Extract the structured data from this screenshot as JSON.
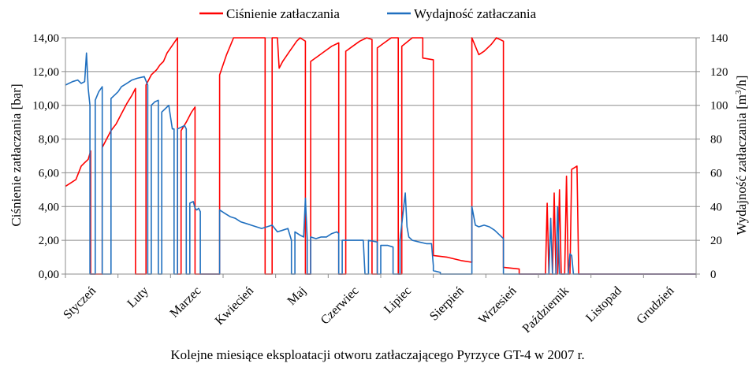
{
  "chart_data": {
    "type": "line",
    "xlabel": "Kolejne miesiące eksploatacji otworu zatłaczającego Pyrzyce GT-4 w 2007 r.",
    "ylabel_left": "Ciśnienie zatłaczania [bar]",
    "ylabel_right_parts": [
      "Wydajność zatłaczania [m",
      "3",
      "/h]"
    ],
    "ylim_left": [
      0,
      14
    ],
    "ylim_right": [
      0,
      140
    ],
    "yticks_left": [
      "0,00",
      "2,00",
      "4,00",
      "6,00",
      "8,00",
      "10,00",
      "12,00",
      "14,00"
    ],
    "yticks_right": [
      "0",
      "20",
      "40",
      "60",
      "80",
      "100",
      "120",
      "140"
    ],
    "months": [
      "Styczeń",
      "Luty",
      "Marzec",
      "Kwiecień",
      "Maj",
      "Czerwiec",
      "Lipiec",
      "Sierpień",
      "Wrzesień",
      "Październik",
      "Listopad",
      "Grudzień"
    ],
    "grid": true,
    "legend_position": "top-center",
    "series": [
      {
        "name": "Ciśnienie zatłaczania",
        "axis": "left",
        "color": "#ff0000",
        "points": [
          [
            0,
            5.2
          ],
          [
            0.15,
            5.4
          ],
          [
            0.3,
            5.6
          ],
          [
            0.45,
            6.4
          ],
          [
            0.55,
            6.6
          ],
          [
            0.65,
            6.8
          ],
          [
            0.72,
            7.3
          ],
          [
            0.72,
            0
          ],
          [
            1.05,
            0
          ],
          [
            1.05,
            7.5
          ],
          [
            1.15,
            7.9
          ],
          [
            1.3,
            8.5
          ],
          [
            1.45,
            8.9
          ],
          [
            1.6,
            9.5
          ],
          [
            1.75,
            10.1
          ],
          [
            1.9,
            10.6
          ],
          [
            2.0,
            11.0
          ],
          [
            2.0,
            0
          ],
          [
            2.3,
            0
          ],
          [
            2.3,
            11.2
          ],
          [
            2.45,
            11.8
          ],
          [
            2.6,
            12.1
          ],
          [
            2.7,
            12.4
          ],
          [
            2.8,
            12.6
          ],
          [
            2.9,
            13.1
          ],
          [
            3.0,
            13.4
          ],
          [
            3.1,
            13.7
          ],
          [
            3.2,
            14.0
          ],
          [
            3.2,
            0
          ],
          [
            3.3,
            0
          ],
          [
            3.3,
            8.5
          ],
          [
            3.45,
            9.0
          ],
          [
            3.6,
            9.6
          ],
          [
            3.7,
            9.9
          ],
          [
            3.7,
            0
          ],
          [
            4.4,
            0
          ],
          [
            4.4,
            11.8
          ],
          [
            4.5,
            12.4
          ],
          [
            4.6,
            13.0
          ],
          [
            4.7,
            13.5
          ],
          [
            4.8,
            14.0
          ],
          [
            5.7,
            14.0
          ],
          [
            5.7,
            0
          ],
          [
            5.9,
            0
          ],
          [
            5.9,
            14.0
          ],
          [
            6.05,
            14.0
          ],
          [
            6.1,
            12.2
          ],
          [
            6.2,
            12.6
          ],
          [
            6.3,
            12.9
          ],
          [
            6.4,
            13.2
          ],
          [
            6.5,
            13.5
          ],
          [
            6.6,
            13.8
          ],
          [
            6.7,
            14.0
          ],
          [
            6.85,
            13.8
          ],
          [
            6.85,
            0
          ],
          [
            7.0,
            0
          ],
          [
            7.0,
            12.6
          ],
          [
            7.2,
            12.9
          ],
          [
            7.4,
            13.2
          ],
          [
            7.6,
            13.5
          ],
          [
            7.8,
            13.7
          ],
          [
            7.8,
            0
          ],
          [
            8.0,
            0
          ],
          [
            8.0,
            13.2
          ],
          [
            8.2,
            13.5
          ],
          [
            8.4,
            13.8
          ],
          [
            8.6,
            14.0
          ],
          [
            8.75,
            13.9
          ],
          [
            8.75,
            0
          ],
          [
            8.9,
            0
          ],
          [
            8.9,
            13.4
          ],
          [
            9.1,
            13.7
          ],
          [
            9.3,
            14.0
          ],
          [
            9.5,
            14.0
          ],
          [
            9.5,
            0
          ],
          [
            9.6,
            0
          ],
          [
            9.6,
            13.5
          ],
          [
            9.9,
            14.0
          ],
          [
            10.2,
            14.0
          ],
          [
            10.2,
            12.8
          ],
          [
            10.5,
            12.7
          ],
          [
            10.5,
            1.1
          ],
          [
            10.9,
            1.0
          ],
          [
            11.3,
            0.8
          ],
          [
            11.6,
            0.7
          ],
          [
            11.6,
            14.0
          ],
          [
            11.8,
            13.0
          ],
          [
            11.95,
            13.2
          ],
          [
            12.15,
            13.6
          ],
          [
            12.3,
            14.0
          ],
          [
            12.5,
            13.8
          ],
          [
            12.5,
            0.4
          ],
          [
            12.95,
            0.3
          ],
          [
            12.95,
            0
          ],
          [
            13.7,
            0
          ],
          [
            13.75,
            4.2
          ],
          [
            13.8,
            0
          ],
          [
            13.9,
            0
          ],
          [
            13.95,
            4.8
          ],
          [
            14.0,
            0
          ],
          [
            14.05,
            0
          ],
          [
            14.1,
            5.0
          ],
          [
            14.15,
            0
          ],
          [
            14.25,
            0
          ],
          [
            14.3,
            5.8
          ],
          [
            14.35,
            0
          ],
          [
            14.4,
            0
          ],
          [
            14.45,
            6.2
          ],
          [
            14.6,
            6.4
          ],
          [
            14.65,
            0
          ],
          [
            18.0,
            0
          ]
        ]
      },
      {
        "name": "Wydajność zatłaczania",
        "axis": "right",
        "color": "#1f6fbf",
        "points": [
          [
            0,
            112
          ],
          [
            0.2,
            114
          ],
          [
            0.35,
            115
          ],
          [
            0.45,
            113
          ],
          [
            0.55,
            114
          ],
          [
            0.6,
            131
          ],
          [
            0.65,
            110
          ],
          [
            0.7,
            100
          ],
          [
            0.7,
            0
          ],
          [
            0.85,
            0
          ],
          [
            0.85,
            103
          ],
          [
            0.95,
            108
          ],
          [
            1.05,
            111
          ],
          [
            1.05,
            0
          ],
          [
            1.3,
            0
          ],
          [
            1.3,
            104
          ],
          [
            1.4,
            106
          ],
          [
            1.5,
            108
          ],
          [
            1.6,
            111
          ],
          [
            1.75,
            113
          ],
          [
            1.9,
            115
          ],
          [
            2.05,
            116
          ],
          [
            2.25,
            117
          ],
          [
            2.35,
            112
          ],
          [
            2.35,
            0
          ],
          [
            2.45,
            0
          ],
          [
            2.45,
            100
          ],
          [
            2.55,
            102
          ],
          [
            2.65,
            103
          ],
          [
            2.65,
            0
          ],
          [
            2.75,
            0
          ],
          [
            2.75,
            96
          ],
          [
            2.85,
            98
          ],
          [
            2.95,
            100
          ],
          [
            3.05,
            86
          ],
          [
            3.1,
            86
          ],
          [
            3.1,
            0
          ],
          [
            3.2,
            0
          ],
          [
            3.2,
            86
          ],
          [
            3.3,
            87
          ],
          [
            3.4,
            88
          ],
          [
            3.45,
            86
          ],
          [
            3.45,
            0
          ],
          [
            3.55,
            0
          ],
          [
            3.55,
            42
          ],
          [
            3.65,
            43
          ],
          [
            3.7,
            39
          ],
          [
            3.75,
            38
          ],
          [
            3.8,
            39
          ],
          [
            3.85,
            37
          ],
          [
            3.85,
            0
          ],
          [
            4.4,
            0
          ],
          [
            4.4,
            38
          ],
          [
            4.55,
            36
          ],
          [
            4.7,
            34
          ],
          [
            4.85,
            33
          ],
          [
            5.0,
            31
          ],
          [
            5.15,
            30
          ],
          [
            5.3,
            29
          ],
          [
            5.45,
            28
          ],
          [
            5.6,
            27
          ],
          [
            5.75,
            28
          ],
          [
            5.9,
            29
          ],
          [
            6.05,
            25
          ],
          [
            6.2,
            26
          ],
          [
            6.35,
            27
          ],
          [
            6.45,
            20
          ],
          [
            6.45,
            0
          ],
          [
            6.55,
            0
          ],
          [
            6.55,
            25
          ],
          [
            6.7,
            23
          ],
          [
            6.8,
            22
          ],
          [
            6.85,
            45
          ],
          [
            6.9,
            21
          ],
          [
            6.9,
            0
          ],
          [
            7.0,
            0
          ],
          [
            7.0,
            22
          ],
          [
            7.15,
            21
          ],
          [
            7.3,
            22
          ],
          [
            7.45,
            22
          ],
          [
            7.6,
            24
          ],
          [
            7.75,
            25
          ],
          [
            7.8,
            24
          ],
          [
            7.8,
            0
          ],
          [
            7.9,
            0
          ],
          [
            7.9,
            20
          ],
          [
            8.2,
            20
          ],
          [
            8.5,
            20
          ],
          [
            8.55,
            0
          ],
          [
            8.65,
            0
          ],
          [
            8.65,
            20
          ],
          [
            8.9,
            19
          ],
          [
            8.9,
            0
          ],
          [
            9.0,
            0
          ],
          [
            9.0,
            17
          ],
          [
            9.2,
            17
          ],
          [
            9.35,
            16
          ],
          [
            9.35,
            0
          ],
          [
            9.55,
            0
          ],
          [
            9.55,
            20
          ],
          [
            9.7,
            48
          ],
          [
            9.75,
            28
          ],
          [
            9.8,
            22
          ],
          [
            9.9,
            20
          ],
          [
            10.1,
            19
          ],
          [
            10.3,
            18
          ],
          [
            10.45,
            18
          ],
          [
            10.5,
            5
          ],
          [
            10.5,
            2
          ],
          [
            10.7,
            1
          ],
          [
            10.7,
            0
          ],
          [
            11.6,
            0
          ],
          [
            11.6,
            40
          ],
          [
            11.7,
            29
          ],
          [
            11.8,
            28
          ],
          [
            11.95,
            29
          ],
          [
            12.1,
            28
          ],
          [
            12.25,
            26
          ],
          [
            12.4,
            23
          ],
          [
            12.5,
            21
          ],
          [
            12.5,
            0
          ],
          [
            13.8,
            0
          ],
          [
            13.85,
            33
          ],
          [
            13.9,
            0
          ],
          [
            14.0,
            0
          ],
          [
            14.05,
            40
          ],
          [
            14.1,
            0
          ],
          [
            14.35,
            0
          ],
          [
            14.4,
            12
          ],
          [
            14.45,
            11
          ],
          [
            14.5,
            0
          ],
          [
            18.0,
            0
          ]
        ]
      }
    ]
  }
}
